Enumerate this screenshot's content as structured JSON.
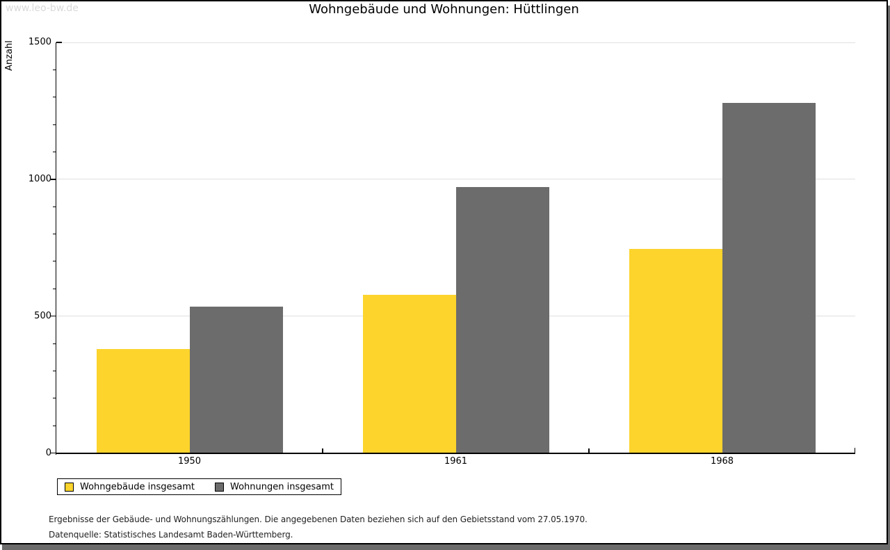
{
  "watermark": "www.leo-bw.de",
  "header": {
    "title": "Wohngebäude und Wohnungen: Hüttlingen"
  },
  "chart_data": {
    "type": "bar",
    "title": "Wohngebäude und Wohnungen: Hüttlingen",
    "xlabel": "",
    "ylabel": "Anzahl",
    "ylim": [
      0,
      1500
    ],
    "ytick_major": [
      0,
      500,
      1000,
      1500
    ],
    "ytick_minor_step": 100,
    "grid": "horizontal gridlines at major ticks",
    "legend_position": "bottom-left",
    "categories": [
      "1950",
      "1961",
      "1968"
    ],
    "series": [
      {
        "name": "Wohngebäude insgesamt",
        "color": "#FCD42C",
        "values": [
          381,
          578,
          745
        ]
      },
      {
        "name": "Wohnungen insgesamt",
        "color": "#6C6C6C",
        "values": [
          534,
          972,
          1280
        ]
      }
    ]
  },
  "footnotes": {
    "line1": "Ergebnisse der Gebäude- und Wohnungszählungen. Die angegebenen Daten beziehen sich auf den Gebietsstand vom 27.05.1970.",
    "line2": "Datenquelle: Statistisches Landesamt Baden-Württemberg."
  },
  "colors": {
    "bar_yellow": "#FCD42C",
    "bar_gray": "#6C6C6C",
    "gridline": "#DFDFDF",
    "axis": "#000000",
    "watermark": "#D9D9D9",
    "footnote_text": "#222222",
    "shadow": "#6B6B6B"
  }
}
